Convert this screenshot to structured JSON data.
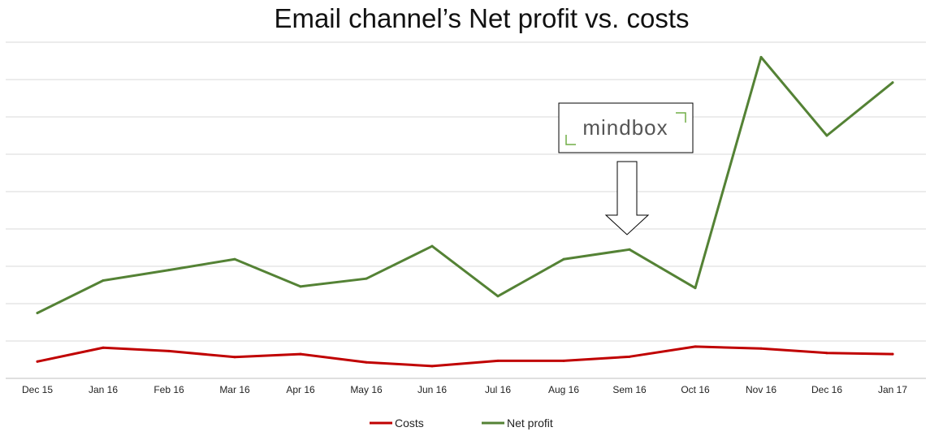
{
  "chart_data": {
    "type": "line",
    "title": "Email channel’s Net profit vs. costs",
    "categories": [
      "Dec 15",
      "Jan 16",
      "Feb 16",
      "Mar 16",
      "Apr 16",
      "May 16",
      "Jun 16",
      "Jul 16",
      "Aug 16",
      "Sem 16",
      "Oct 16",
      "Nov 16",
      "Dec 16",
      "Jan 17"
    ],
    "series": [
      {
        "name": "Costs",
        "color": "#c00000",
        "values": [
          0.45,
          0.82,
          0.73,
          0.57,
          0.65,
          0.43,
          0.33,
          0.47,
          0.47,
          0.58,
          0.85,
          0.8,
          0.68,
          0.65
        ]
      },
      {
        "name": "Net profit",
        "color": "#548235",
        "values": [
          1.75,
          2.62,
          2.9,
          3.19,
          2.46,
          2.67,
          3.54,
          2.2,
          3.19,
          3.45,
          2.42,
          8.6,
          6.5,
          7.92
        ]
      }
    ],
    "ylim": [
      0,
      9
    ],
    "y_axis_labels_shown": false,
    "grid": "horizontal",
    "legend_position": "bottom-center",
    "annotation": {
      "logo_text": "mindbox",
      "arrow_category": "Sem 16",
      "arrow_direction": "down"
    }
  },
  "colors": {
    "gridline": "#d9d9d9",
    "axis": "#bfbfbf",
    "logo_border": "#000000",
    "logo_accent": "#70ad47"
  }
}
